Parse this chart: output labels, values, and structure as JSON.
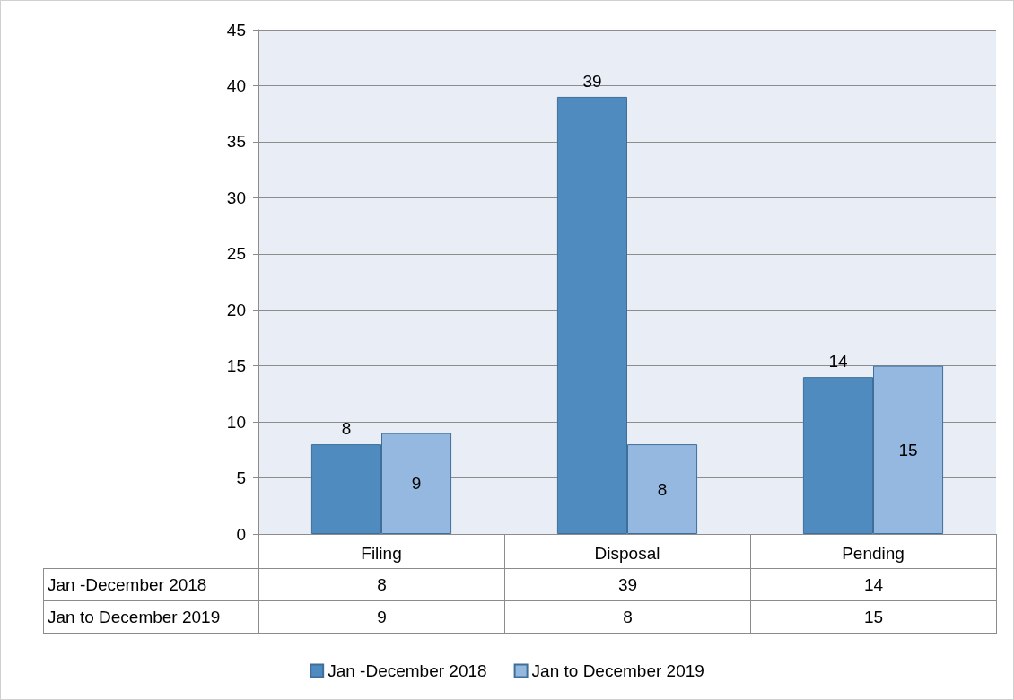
{
  "chart_data": {
    "type": "bar",
    "categories": [
      "Filing",
      "Disposal",
      "Pending"
    ],
    "series": [
      {
        "name": "Jan -December 2018",
        "color": "#4f8bbf",
        "values": [
          8,
          39,
          14
        ]
      },
      {
        "name": "Jan to December 2019",
        "color": "#95b8e0",
        "values": [
          9,
          8,
          15
        ]
      }
    ],
    "annotations": [
      "8",
      "39",
      "14",
      "9",
      "8",
      "15"
    ],
    "ylim": [
      0,
      45
    ],
    "yticks": [
      0,
      5,
      10,
      15,
      20,
      25,
      30,
      35,
      40,
      45
    ],
    "grid": "y",
    "legend": "bottom",
    "data_labels": true
  }
}
